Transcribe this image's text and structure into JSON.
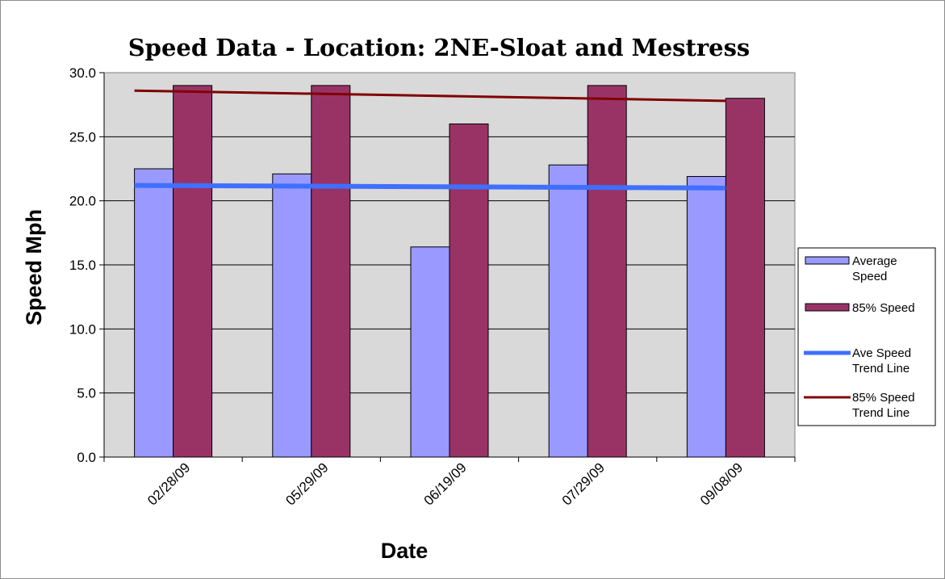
{
  "chart_data": {
    "type": "bar",
    "title": "Speed Data - Location: 2NE-Sloat and Mestress",
    "xlabel": "Date",
    "ylabel": "Speed Mph",
    "categories": [
      "02/28/09",
      "05/29/09",
      "06/19/09",
      "07/29/09",
      "09/08/09"
    ],
    "series": [
      {
        "name": "Average Speed",
        "legend_lines": [
          "Average",
          "Speed"
        ],
        "type": "bar",
        "color": "#9999FF",
        "values": [
          22.5,
          22.1,
          16.4,
          22.8,
          21.9
        ]
      },
      {
        "name": "85% Speed",
        "legend_lines": [
          "85% Speed"
        ],
        "type": "bar",
        "color": "#993366",
        "values": [
          29,
          29,
          26,
          29,
          28
        ]
      }
    ],
    "trend_lines": [
      {
        "name": "Ave Speed Trend Line",
        "legend_lines": [
          "Ave Speed",
          "Trend Line"
        ],
        "color": "#3F6FFF",
        "start": 21.2,
        "end": 21.0
      },
      {
        "name": "85% Speed Trend Line",
        "legend_lines": [
          "85% Speed",
          "Trend Line"
        ],
        "color": "#800000",
        "start": 28.6,
        "end": 27.8
      }
    ],
    "y_ticks": [
      "0.0",
      "5.0",
      "10.0",
      "15.0",
      "20.0",
      "25.0",
      "30.0"
    ],
    "ylim": [
      0,
      30
    ],
    "grid": true,
    "plot_background": "#D9D9D9",
    "legend_position": "right"
  }
}
